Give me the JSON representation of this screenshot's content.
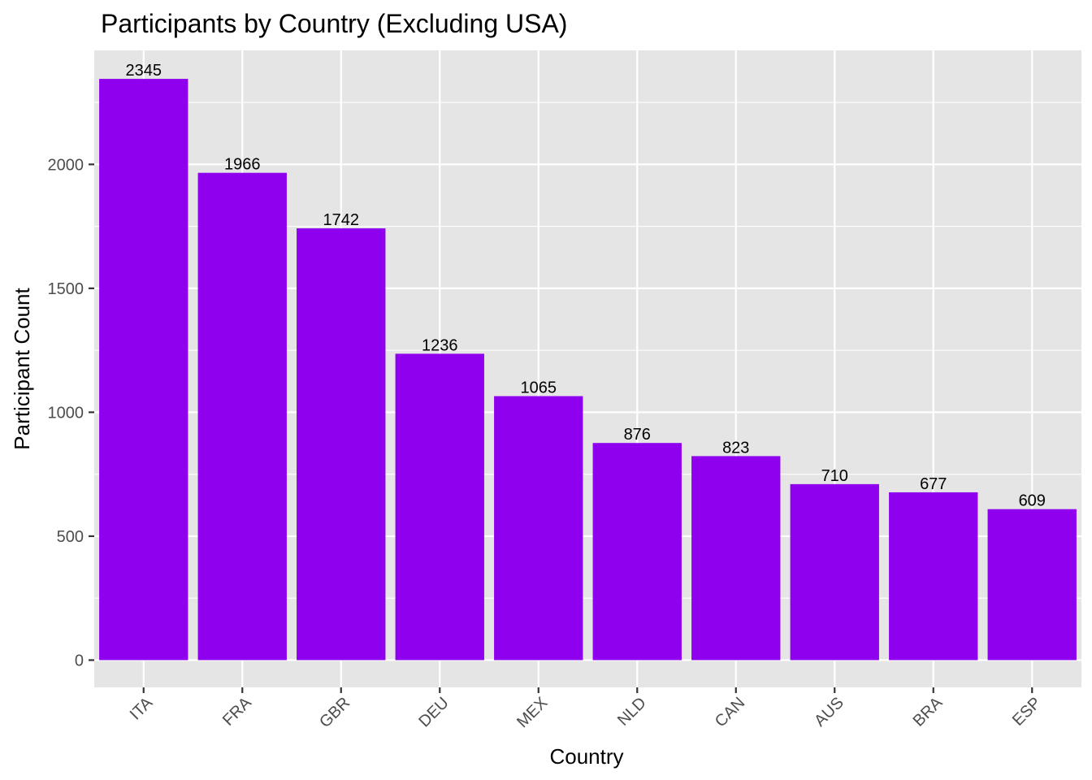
{
  "chart_data": {
    "type": "bar",
    "title": "Participants by Country (Excluding USA)",
    "xlabel": "Country",
    "ylabel": "Participant Count",
    "categories": [
      "ITA",
      "FRA",
      "GBR",
      "DEU",
      "MEX",
      "NLD",
      "CAN",
      "AUS",
      "BRA",
      "ESP"
    ],
    "values": [
      2345,
      1966,
      1742,
      1236,
      1065,
      876,
      823,
      710,
      677,
      609
    ],
    "ylim": [
      -110,
      2460
    ],
    "yticks": [
      "0",
      "500",
      "1000",
      "1500",
      "2000"
    ],
    "grid": true,
    "legend": "none",
    "colors": {
      "bar": "#8e00ee",
      "panel": "#e5e5e5",
      "grid": "#ffffff",
      "tick_text": "#4d4d4d"
    }
  }
}
